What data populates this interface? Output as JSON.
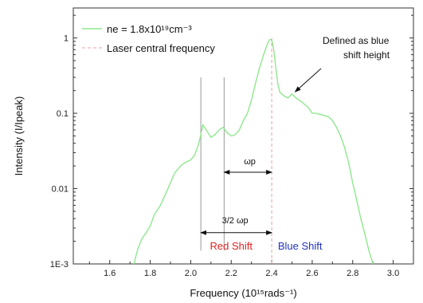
{
  "chart_data": {
    "type": "line",
    "title": "",
    "xlabel": "Frequency (10¹⁵rads⁻¹)",
    "ylabel": "Intensity (I/Ipeak)",
    "xlim": [
      1.42,
      3.1
    ],
    "ylim": [
      0.001,
      2.5
    ],
    "yscale": "log",
    "grid": false,
    "legend_position": "top-left",
    "x_ticks": [
      {
        "value": 1.6,
        "label": "1.6"
      },
      {
        "value": 1.8,
        "label": "1.8"
      },
      {
        "value": 2.0,
        "label": "2.0"
      },
      {
        "value": 2.2,
        "label": "2.2"
      },
      {
        "value": 2.4,
        "label": "2.4"
      },
      {
        "value": 2.6,
        "label": "2.6"
      },
      {
        "value": 2.8,
        "label": "2.8"
      },
      {
        "value": 3.0,
        "label": "3.0"
      }
    ],
    "y_ticks": [
      {
        "value": 1,
        "label": "1"
      },
      {
        "value": 0.1,
        "label": "0.1"
      },
      {
        "value": 0.01,
        "label": "0.01"
      },
      {
        "value": 0.001,
        "label": "1E-3"
      }
    ],
    "series": [
      {
        "name": "ne = 1.8x10¹⁹cm⁻³",
        "color": "#8ee88e",
        "x": [
          1.72,
          1.73,
          1.74,
          1.75,
          1.76,
          1.78,
          1.8,
          1.82,
          1.85,
          1.88,
          1.9,
          1.92,
          1.95,
          1.97,
          2.0,
          2.02,
          2.04,
          2.06,
          2.08,
          2.1,
          2.12,
          2.14,
          2.16,
          2.18,
          2.2,
          2.22,
          2.24,
          2.26,
          2.28,
          2.3,
          2.32,
          2.34,
          2.36,
          2.38,
          2.39,
          2.4,
          2.41,
          2.42,
          2.43,
          2.44,
          2.46,
          2.48,
          2.5,
          2.52,
          2.55,
          2.58,
          2.6,
          2.62,
          2.65,
          2.68,
          2.7,
          2.72,
          2.74,
          2.76,
          2.78,
          2.8,
          2.82,
          2.84,
          2.86,
          2.88,
          2.9
        ],
        "y": [
          0.001,
          0.0013,
          0.0016,
          0.0019,
          0.0022,
          0.0026,
          0.0032,
          0.0045,
          0.006,
          0.009,
          0.012,
          0.016,
          0.02,
          0.022,
          0.024,
          0.028,
          0.04,
          0.07,
          0.058,
          0.048,
          0.052,
          0.06,
          0.065,
          0.055,
          0.05,
          0.052,
          0.06,
          0.08,
          0.1,
          0.15,
          0.25,
          0.4,
          0.6,
          0.85,
          0.95,
          0.95,
          0.7,
          0.4,
          0.25,
          0.19,
          0.17,
          0.16,
          0.18,
          0.16,
          0.14,
          0.12,
          0.1,
          0.1,
          0.095,
          0.09,
          0.08,
          0.065,
          0.05,
          0.035,
          0.022,
          0.012,
          0.007,
          0.004,
          0.0025,
          0.0015,
          0.001
        ]
      },
      {
        "name": "Laser central frequency",
        "color": "#e8a0a0",
        "dash": "dashed",
        "x": [
          2.4,
          2.4
        ],
        "y": [
          0.001,
          1.0
        ]
      }
    ],
    "markers": [
      {
        "x": 2.05,
        "color": "#999999"
      },
      {
        "x": 2.165,
        "color": "#999999"
      }
    ],
    "annotations": {
      "blue_shift_height": {
        "text_line1": "Defined as blue",
        "text_line2": "shift height",
        "point": {
          "x": 2.5,
          "y": 0.175
        }
      },
      "omega_p": {
        "text": "ωp",
        "x_from": 2.165,
        "x_to": 2.4,
        "y": 0.0165
      },
      "three_halves_omega_p": {
        "text": "3/2 ωp",
        "x_from": 2.05,
        "x_to": 2.4,
        "y": 0.0026
      },
      "red_shift": {
        "text": "Red Shift",
        "color": "#dd2222",
        "x": 2.2,
        "y": 0.00155
      },
      "blue_shift": {
        "text": "Blue Shift",
        "color": "#2233bb",
        "x": 2.54,
        "y": 0.00155
      }
    }
  }
}
